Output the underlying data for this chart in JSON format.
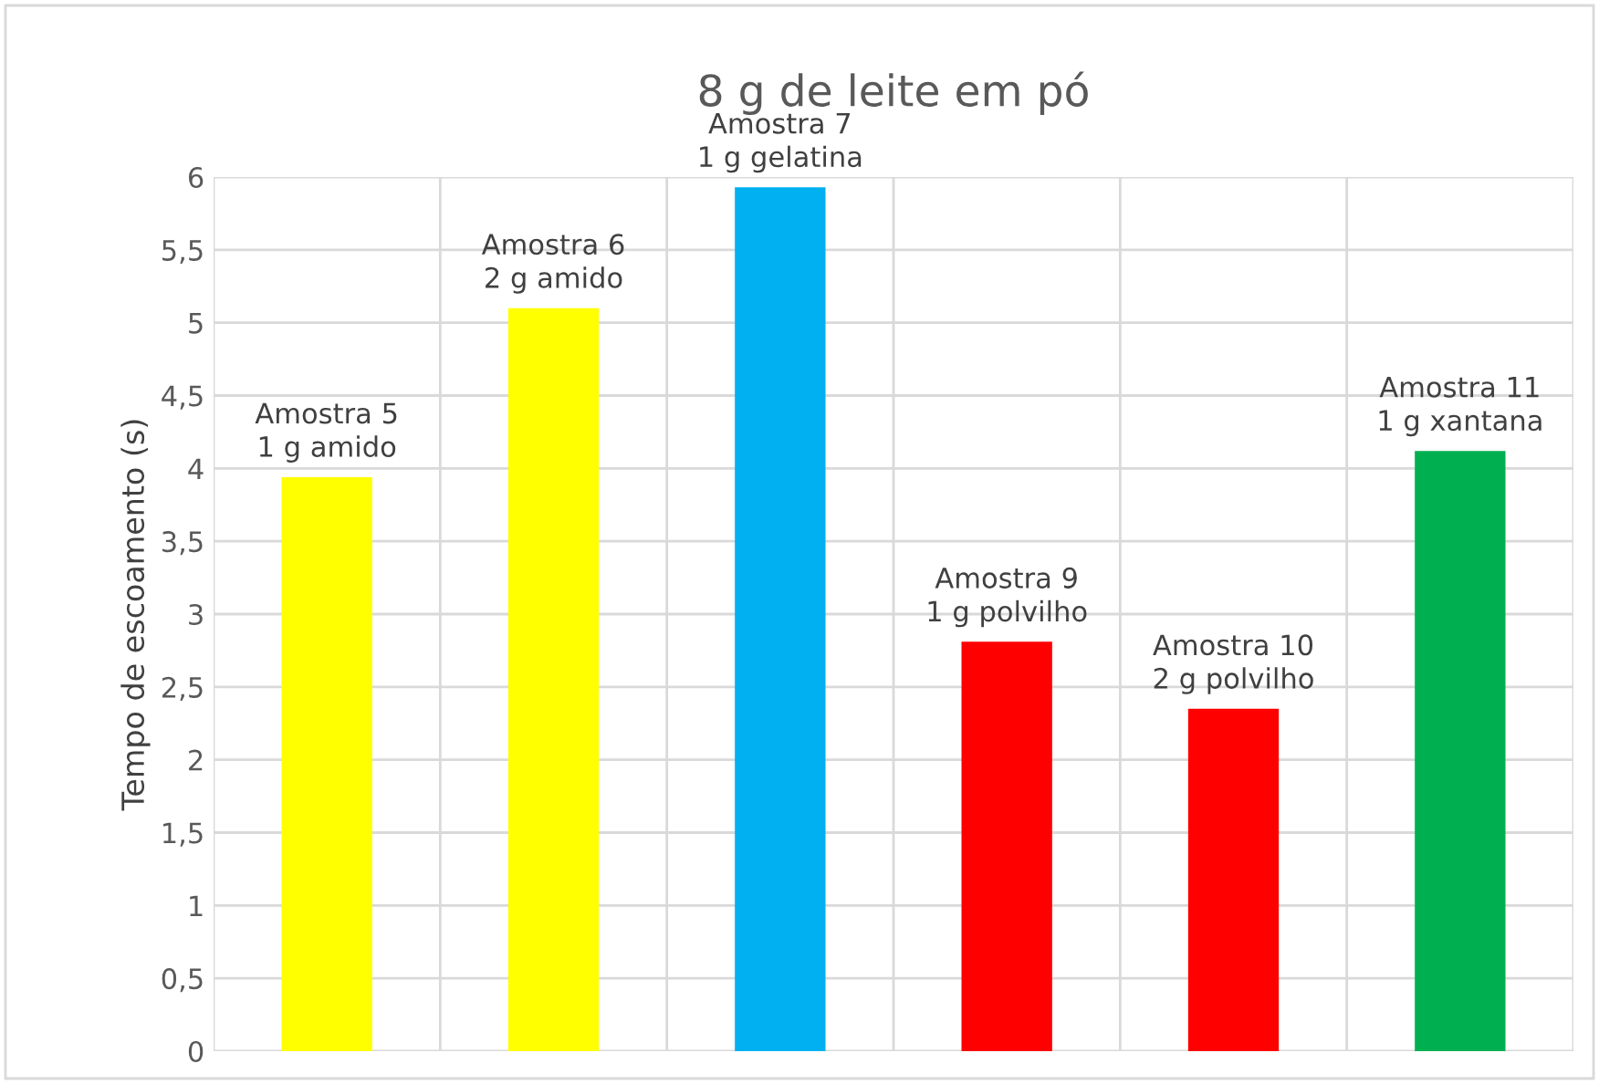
{
  "chart_data": {
    "type": "bar",
    "title": "8 g de leite em pó",
    "ylabel": "Tempo de escoamento (s)",
    "categories": [
      "Amostra 5\n1 g amido",
      "Amostra 6\n2 g amido",
      "Amostra 7\n1 g gelatina",
      "Amostra 9\n1 g polvilho",
      "Amostra 10\n2 g polvilho",
      "Amostra 11\n1 g xantana"
    ],
    "values": [
      3.94,
      5.1,
      5.93,
      2.81,
      2.35,
      4.12
    ],
    "colors": [
      "#ffff00",
      "#ffff00",
      "#00b0f0",
      "#ff0000",
      "#ff0000",
      "#00b050"
    ],
    "ylim": [
      0,
      6
    ],
    "yticks": [
      0,
      {
        "value": 0.5,
        "label": "0,5"
      },
      1,
      {
        "value": 1.5,
        "label": "1,5"
      },
      2,
      {
        "value": 2.5,
        "label": "2,5"
      },
      3,
      {
        "value": 3.5,
        "label": "3,5"
      },
      4,
      {
        "value": 4.5,
        "label": "4,5"
      },
      5,
      {
        "value": 5.5,
        "label": "5,5"
      },
      6
    ],
    "grid": true
  }
}
